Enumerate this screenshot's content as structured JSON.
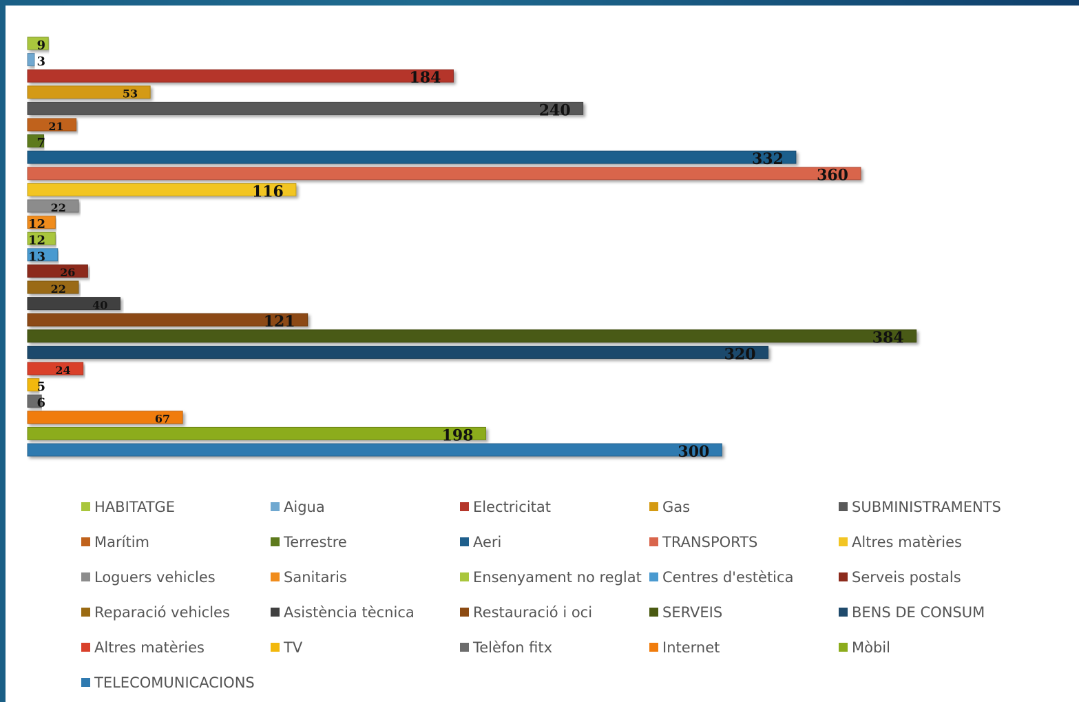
{
  "chart_data": {
    "type": "bar",
    "orientation": "horizontal",
    "xlim": [
      0,
      450
    ],
    "grid": false,
    "legend_position": "bottom",
    "categories": [
      "HABITATGE",
      "Aigua",
      "Electricitat",
      "Gas",
      "SUBMINISTRAMENTS",
      "Marítim",
      "Terrestre",
      "Aeri",
      "TRANSPORTS",
      "Altres matèries",
      "Loguers vehicles",
      "Sanitaris",
      "Ensenyament no reglat",
      "Centres d'estètica",
      "Serveis postals",
      "Reparació vehicles",
      "Asistència tècnica",
      "Restauració i oci",
      "SERVEIS",
      "BENS DE CONSUM",
      "Altres matèries",
      "TV",
      "Telèfon fitx",
      "Internet",
      "Mòbil",
      "TELECOMUNICACIONS"
    ],
    "values": [
      9,
      3,
      184,
      53,
      240,
      21,
      7,
      332,
      360,
      116,
      22,
      12,
      12,
      13,
      26,
      22,
      40,
      121,
      384,
      320,
      24,
      5,
      6,
      67,
      198,
      300
    ],
    "colors": [
      "#a9c63c",
      "#6fa8d0",
      "#b5362a",
      "#d49a12",
      "#595959",
      "#c0621b",
      "#5d7a1c",
      "#1f5f8c",
      "#d9654c",
      "#f2c524",
      "#8c8c8c",
      "#f08c1c",
      "#a9c63c",
      "#4a9ad0",
      "#8c2a1c",
      "#9a6a12",
      "#404040",
      "#8c4a12",
      "#4a5a12",
      "#1f4a6c",
      "#d9402a",
      "#f2b80c",
      "#6c6c6c",
      "#f07c0c",
      "#8cac1c",
      "#2f7ab0"
    ]
  }
}
